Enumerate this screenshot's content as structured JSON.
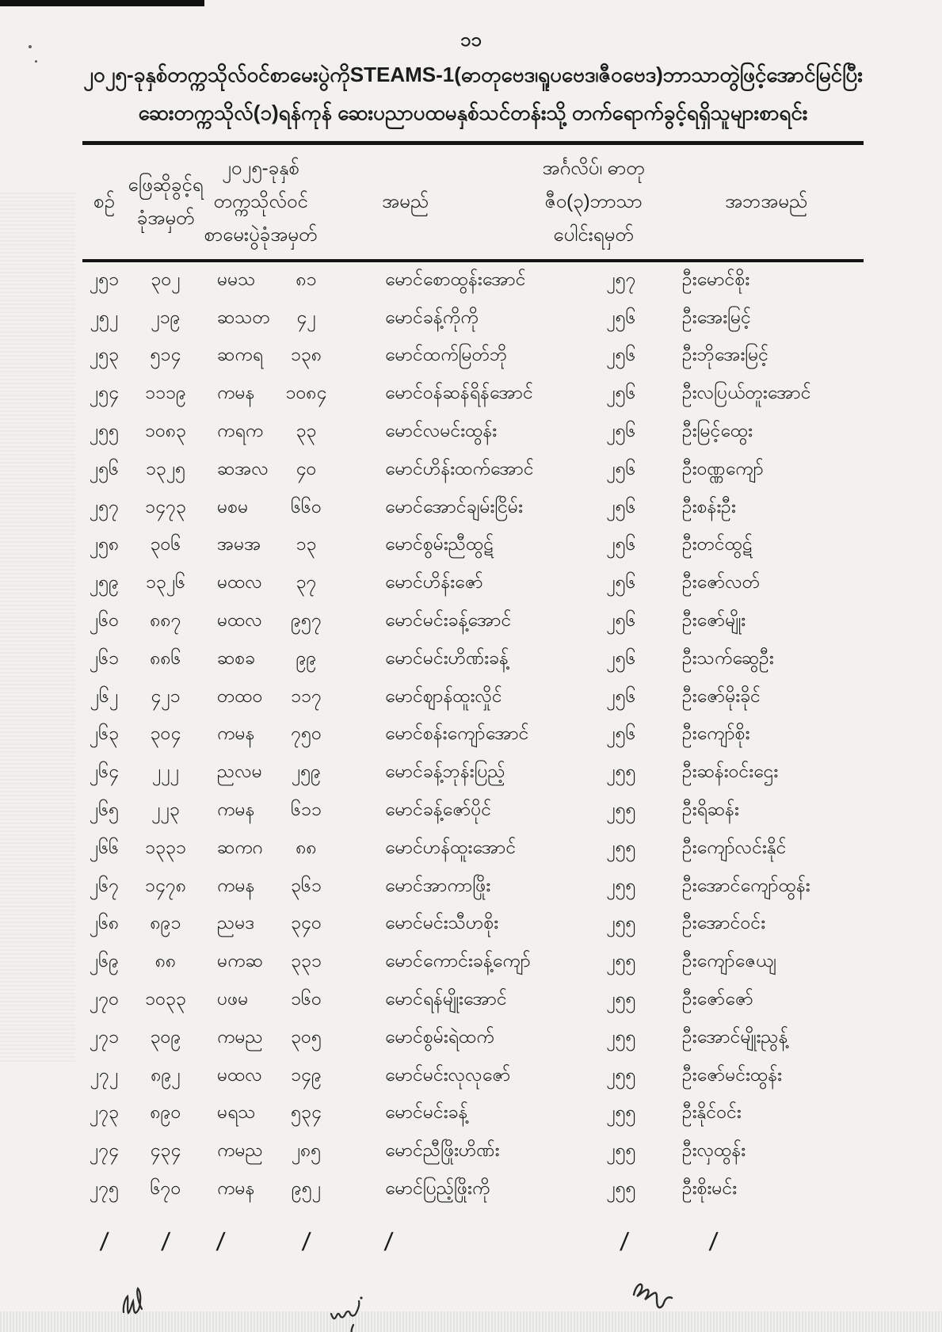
{
  "page": {
    "number": "၁၁",
    "title_line1": "၂၀၂၅-ခုနှစ်တက္ကသိုလ်ဝင်စာမေးပွဲကိုSTEAMS-1(ဓာတုဗေဒ၊ရူပဗေဒ၊ဇီဝဗေဒ)ဘာသာတွဲဖြင့်အောင်မြင်ပြီး",
    "title_line2": "ဆေးတက္ကသိုလ်(၁)ရန်ကုန် ဆေးပညာပထမနှစ်သင်တန်းသို့ တက်ရောက်ခွင့်ရရှိသူများစာရင်း"
  },
  "table": {
    "headers": {
      "no": "စဉ်",
      "roll_l1": "ဖြေဆိုခွင့်ရ",
      "roll_l2": "ခုံအမှတ်",
      "exam_l1": "၂၀၂၅-ခုနှစ်",
      "exam_l2": "တက္ကသိုလ်ဝင်",
      "exam_l3": "စာမေးပွဲခုံအမှတ်",
      "name": "အမည်",
      "marks_l1": "အင်္ဂလိပ်၊ ဓာတု",
      "marks_l2": "ဇီဝ(၃)ဘာသာ",
      "marks_l3": "ပေါင်းရမှတ်",
      "father": "အဘအမည်"
    },
    "rows": [
      {
        "no": "၂၅၁",
        "roll": "၃၀၂",
        "code": "မမသ",
        "exam_no": "၈၁",
        "name": "မောင်စောထွန်းအောင်",
        "marks": "၂၅၇",
        "father": "ဦးမောင်စိုး"
      },
      {
        "no": "၂၅၂",
        "roll": "၂၁၉",
        "code": "ဆသတ",
        "exam_no": "၄၂",
        "name": "မောင်ခန့်ကိုကို",
        "marks": "၂၅၆",
        "father": "ဦးအေးမြင့်"
      },
      {
        "no": "၂၅၃",
        "roll": "၅၁၄",
        "code": "ဆကရ",
        "exam_no": "၁၃၈",
        "name": "မောင်ထက်မြတ်ဘို",
        "marks": "၂၅၆",
        "father": "ဦးဘိုအေးမြင့်"
      },
      {
        "no": "၂၅၄",
        "roll": "၁၁၁၉",
        "code": "ကမန",
        "exam_no": "၁၀၈၄",
        "name": "မောင်ဝန်ဆန်ရိန်အောင်",
        "marks": "၂၅၆",
        "father": "ဦးလပြယ်တူးအောင်"
      },
      {
        "no": "၂၅၅",
        "roll": "၁၀၈၃",
        "code": "ကရက",
        "exam_no": "၃၃",
        "name": "မောင်လမင်းထွန်း",
        "marks": "၂၅၆",
        "father": "ဦးမြင့်ထွေး"
      },
      {
        "no": "၂၅၆",
        "roll": "၁၃၂၅",
        "code": "ဆအလ",
        "exam_no": "၄၀",
        "name": "မောင်ဟိန်းထက်အောင်",
        "marks": "၂၅၆",
        "father": "ဦးဝဏ္ဏကျော်"
      },
      {
        "no": "၂၅၇",
        "roll": "၁၄၇၃",
        "code": "မစမ",
        "exam_no": "၆၆၀",
        "name": "မောင်အောင်ချမ်းငြိမ်း",
        "marks": "၂၅၆",
        "father": "ဦးစန်းဦး"
      },
      {
        "no": "၂၅၈",
        "roll": "၃၀၆",
        "code": "အမအ",
        "exam_no": "၁၃",
        "name": "မောင်စွမ်းညီထွဋ်",
        "marks": "၂၅၆",
        "father": "ဦးတင်ထွဋ်"
      },
      {
        "no": "၂၅၉",
        "roll": "၁၃၂၆",
        "code": "မထလ",
        "exam_no": "၃၇",
        "name": "မောင်ဟိန်းဇော်",
        "marks": "၂၅၆",
        "father": "ဦးဇော်လတ်"
      },
      {
        "no": "၂၆၀",
        "roll": "၈၈၇",
        "code": "မထလ",
        "exam_no": "၉၅၇",
        "name": "မောင်မင်းခန့်အောင်",
        "marks": "၂၅၆",
        "father": "ဦးဇော်မျိုး"
      },
      {
        "no": "၂၆၁",
        "roll": "၈၈၆",
        "code": "ဆစခ",
        "exam_no": "၉၉",
        "name": "မောင်မင်းဟိဏ်းခန့်",
        "marks": "၂၅၆",
        "father": "ဦးသက်ဆွေဦး"
      },
      {
        "no": "၂၆၂",
        "roll": "၄၂၁",
        "code": "တထဝ",
        "exam_no": "၁၁၇",
        "name": "မောင်ဈာန်ထူးလှိုင်",
        "marks": "၂၅၆",
        "father": "ဦးဇော်မိုးခိုင်"
      },
      {
        "no": "၂၆၃",
        "roll": "၃၀၄",
        "code": "ကမန",
        "exam_no": "၇၅၀",
        "name": "မောင်စန်းကျော်အောင်",
        "marks": "၂၅၆",
        "father": "ဦးကျော်စိုး"
      },
      {
        "no": "၂၆၄",
        "roll": "၂၂၂",
        "code": "ညလမ",
        "exam_no": "၂၅၉",
        "name": "မောင်ခန့်ဘုန်းပြည့်",
        "marks": "၂၅၅",
        "father": "ဦးဆန်းဝင်းဌေး"
      },
      {
        "no": "၂၆၅",
        "roll": "၂၂၃",
        "code": "ကမန",
        "exam_no": "၆၁၁",
        "name": "မောင်ခန့်ဇော်ပိုင်",
        "marks": "၂၅၅",
        "father": "ဦးရိဆန်း"
      },
      {
        "no": "၂၆၆",
        "roll": "၁၃၃၁",
        "code": "ဆကဂ",
        "exam_no": "၈၈",
        "name": "မောင်ဟန်ထူးအောင်",
        "marks": "၂၅၅",
        "father": "ဦးကျော်လင်းနိုင်"
      },
      {
        "no": "၂၆၇",
        "roll": "၁၄၇၈",
        "code": "ကမန",
        "exam_no": "၃၆၁",
        "name": "မောင်အာကာဖြိုး",
        "marks": "၂၅၅",
        "father": "ဦးအောင်ကျော်ထွန်း"
      },
      {
        "no": "၂၆၈",
        "roll": "၈၉၁",
        "code": "ညမဒ",
        "exam_no": "၃၄၀",
        "name": "မောင်မင်းသီဟစိုး",
        "marks": "၂၅၅",
        "father": "ဦးအောင်ဝင်း"
      },
      {
        "no": "၂၆၉",
        "roll": "၈၈",
        "code": "မကဆ",
        "exam_no": "၃၃၁",
        "name": "မောင်ကောင်းခန့်ကျော်",
        "marks": "၂၅၅",
        "father": "ဦးကျော်ဇေယျ"
      },
      {
        "no": "၂၇၀",
        "roll": "၁၀၃၃",
        "code": "ပဖမ",
        "exam_no": "၁၆၀",
        "name": "မောင်ရန်မျိုးအောင်",
        "marks": "၂၅၅",
        "father": "ဦးဇော်ဇော်"
      },
      {
        "no": "၂၇၁",
        "roll": "၃၀၉",
        "code": "ကမည",
        "exam_no": "၃၀၅",
        "name": "မောင်စွမ်းရဲထက်",
        "marks": "၂၅၅",
        "father": "ဦးအောင်မျိုးညွန့်"
      },
      {
        "no": "၂၇၂",
        "roll": "၈၉၂",
        "code": "မထလ",
        "exam_no": "၁၄၉",
        "name": "မောင်မင်းလုလုဇော်",
        "marks": "၂၅၅",
        "father": "ဦးဇော်မင်းထွန်း"
      },
      {
        "no": "၂၇၃",
        "roll": "၈၉၀",
        "code": "မရသ",
        "exam_no": "၅၃၄",
        "name": "မောင်မင်းခန့်",
        "marks": "၂၅၅",
        "father": "ဦးနိုင်ဝင်း"
      },
      {
        "no": "၂၇၄",
        "roll": "၄၃၄",
        "code": "ကမည",
        "exam_no": "၂၈၅",
        "name": "မောင်ညီဖြိုးဟိဏ်း",
        "marks": "၂၅၅",
        "father": "ဦးလှထွန်း"
      },
      {
        "no": "၂၇၅",
        "roll": "၆၇၀",
        "code": "ကမန",
        "exam_no": "၉၅၂",
        "name": "မောင်ပြည့်ဖြိုးကို",
        "marks": "၂၅၅",
        "father": "ဦးစိုးမင်း"
      }
    ],
    "slash": "/"
  },
  "annotations": {
    "left_mark": "handwritten-tick-squiggle",
    "center_mark": "handwritten-wei-squiggle",
    "right_mark": "handwritten-signature-squiggle"
  }
}
